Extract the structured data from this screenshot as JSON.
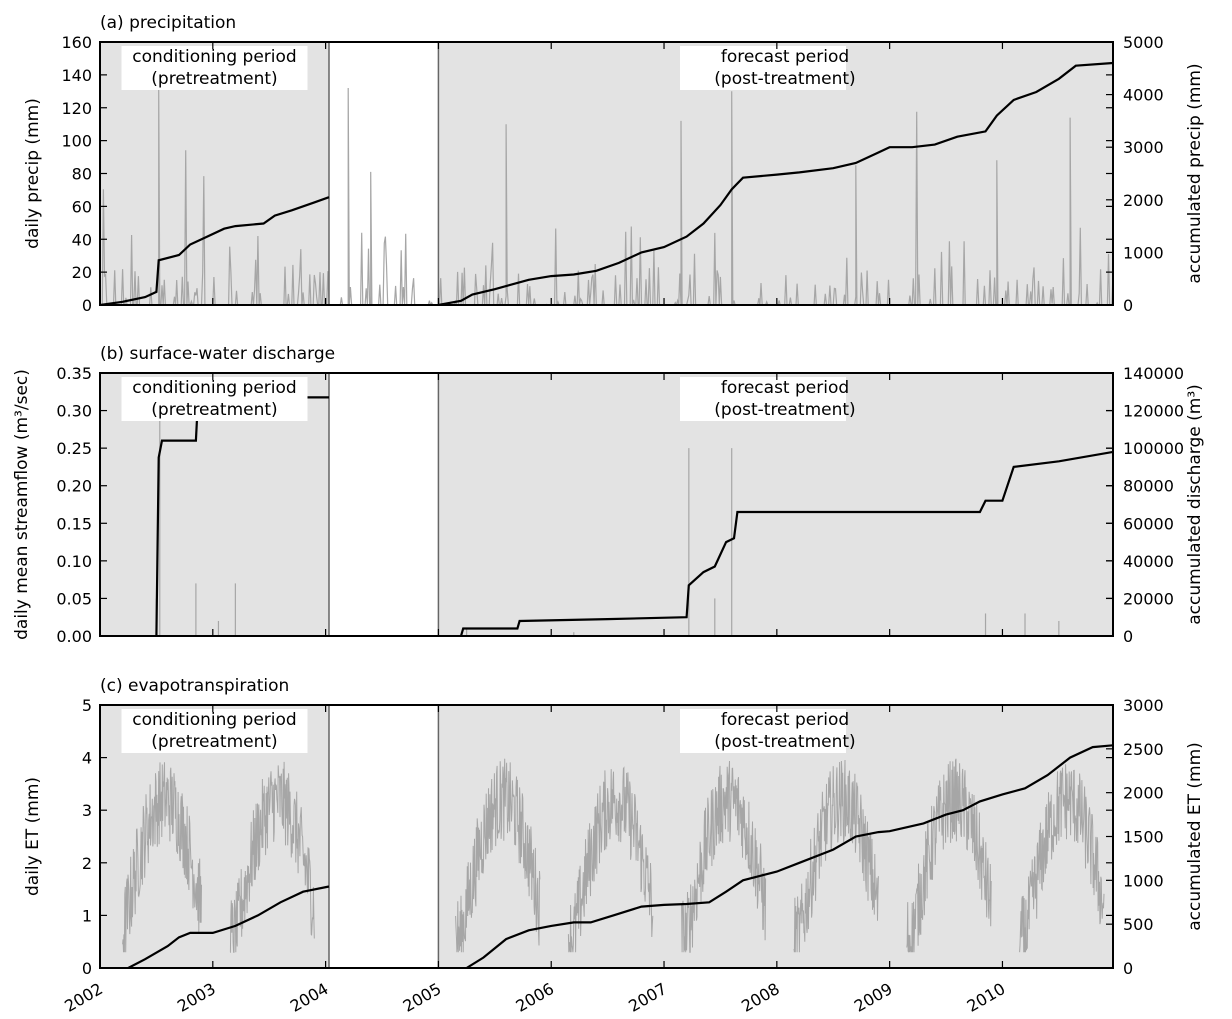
{
  "chart_data": [
    {
      "type": "line",
      "title": "(a) precipitation",
      "ylabel": "daily precip (mm)",
      "y2label": "accumulated precip (mm)",
      "ylim": [
        0,
        160
      ],
      "y2lim": [
        0,
        5000
      ],
      "yticks": [
        0,
        20,
        40,
        60,
        80,
        100,
        120,
        140,
        160
      ],
      "y2ticks": [
        0,
        1000,
        2000,
        3000,
        4000,
        5000
      ],
      "periods": [
        {
          "label": "conditioning period",
          "sublabel": "(pretreatment)",
          "start": 2002.0,
          "end": 2004.03
        },
        {
          "label": "forecast period",
          "sublabel": "(post-treatment)",
          "start": 2005.0,
          "end": 2010.98
        }
      ],
      "accumulated": {
        "segments": [
          [
            [
              2002.0,
              0
            ],
            [
              2002.2,
              60
            ],
            [
              2002.4,
              150
            ],
            [
              2002.5,
              250
            ],
            [
              2002.52,
              850
            ],
            [
              2002.7,
              950
            ],
            [
              2002.8,
              1150
            ],
            [
              2002.95,
              1300
            ],
            [
              2003.1,
              1450
            ],
            [
              2003.2,
              1500
            ],
            [
              2003.45,
              1550
            ],
            [
              2003.55,
              1700
            ],
            [
              2003.7,
              1800
            ],
            [
              2003.9,
              1950
            ],
            [
              2004.03,
              2050
            ]
          ],
          [
            [
              2005.0,
              0
            ],
            [
              2005.2,
              80
            ],
            [
              2005.3,
              200
            ],
            [
              2005.5,
              300
            ],
            [
              2005.8,
              480
            ],
            [
              2006.0,
              550
            ],
            [
              2006.2,
              580
            ],
            [
              2006.4,
              650
            ],
            [
              2006.6,
              800
            ],
            [
              2006.8,
              1000
            ],
            [
              2007.0,
              1100
            ],
            [
              2007.2,
              1300
            ],
            [
              2007.35,
              1550
            ],
            [
              2007.5,
              1900
            ],
            [
              2007.6,
              2200
            ],
            [
              2007.7,
              2420
            ],
            [
              2008.0,
              2480
            ],
            [
              2008.2,
              2520
            ],
            [
              2008.5,
              2600
            ],
            [
              2008.7,
              2700
            ],
            [
              2008.9,
              2900
            ],
            [
              2009.0,
              3000
            ],
            [
              2009.2,
              3000
            ],
            [
              2009.4,
              3050
            ],
            [
              2009.6,
              3200
            ],
            [
              2009.85,
              3300
            ],
            [
              2009.95,
              3600
            ],
            [
              2010.1,
              3900
            ],
            [
              2010.3,
              4050
            ],
            [
              2010.5,
              4300
            ],
            [
              2010.65,
              4550
            ],
            [
              2010.98,
              4600
            ]
          ]
        ]
      },
      "daily_style": "gray spikes"
    },
    {
      "type": "line",
      "title": "(b) surface-water discharge",
      "ylabel": "daily mean streamflow (m³/sec)",
      "y2label": "accumulated discharge (m³)",
      "ylim": [
        0,
        0.35
      ],
      "y2lim": [
        0,
        140000
      ],
      "yticks": [
        0.0,
        0.05,
        0.1,
        0.15,
        0.2,
        0.25,
        0.3,
        0.35
      ],
      "y2ticks": [
        0,
        20000,
        40000,
        60000,
        80000,
        100000,
        120000,
        140000
      ],
      "periods": [
        {
          "label": "conditioning period",
          "sublabel": "(pretreatment)",
          "start": 2002.0,
          "end": 2004.03
        },
        {
          "label": "forecast period",
          "sublabel": "(post-treatment)",
          "start": 2005.0,
          "end": 2010.98
        }
      ],
      "accumulated": {
        "segments": [
          [
            [
              2002.5,
              0
            ],
            [
              2002.52,
              95000
            ],
            [
              2002.55,
              104000
            ],
            [
              2002.85,
              104000
            ],
            [
              2002.87,
              127000
            ],
            [
              2004.03,
              127000
            ]
          ],
          [
            [
              2005.2,
              0
            ],
            [
              2005.22,
              4000
            ],
            [
              2005.7,
              4000
            ],
            [
              2005.72,
              8000
            ],
            [
              2006.5,
              9000
            ],
            [
              2007.2,
              10000
            ],
            [
              2007.22,
              27000
            ],
            [
              2007.35,
              34000
            ],
            [
              2007.45,
              37000
            ],
            [
              2007.55,
              50000
            ],
            [
              2007.62,
              52000
            ],
            [
              2007.65,
              66000
            ],
            [
              2009.8,
              66000
            ],
            [
              2009.85,
              72000
            ],
            [
              2010.0,
              72000
            ],
            [
              2010.1,
              90000
            ],
            [
              2010.5,
              93000
            ],
            [
              2010.98,
              98000
            ]
          ]
        ]
      },
      "daily_style": "gray spikes"
    },
    {
      "type": "line",
      "title": "(c) evapotranspiration",
      "ylabel": "daily ET (mm)",
      "y2label": "accumulated ET (mm)",
      "ylim": [
        0,
        5
      ],
      "y2lim": [
        0,
        3000
      ],
      "yticks": [
        0,
        1,
        2,
        3,
        4,
        5
      ],
      "y2ticks": [
        0,
        500,
        1000,
        1500,
        2000,
        2500,
        3000
      ],
      "periods": [
        {
          "label": "conditioning period",
          "sublabel": "(pretreatment)",
          "start": 2002.0,
          "end": 2004.03
        },
        {
          "label": "forecast period",
          "sublabel": "(post-treatment)",
          "start": 2005.0,
          "end": 2010.98
        }
      ],
      "accumulated": {
        "segments": [
          [
            [
              2002.25,
              0
            ],
            [
              2002.4,
              100
            ],
            [
              2002.6,
              250
            ],
            [
              2002.7,
              350
            ],
            [
              2002.8,
              400
            ],
            [
              2003.0,
              400
            ],
            [
              2003.2,
              480
            ],
            [
              2003.4,
              600
            ],
            [
              2003.6,
              750
            ],
            [
              2003.8,
              870
            ],
            [
              2004.03,
              930
            ]
          ],
          [
            [
              2005.25,
              0
            ],
            [
              2005.4,
              120
            ],
            [
              2005.6,
              330
            ],
            [
              2005.8,
              430
            ],
            [
              2006.0,
              480
            ],
            [
              2006.2,
              520
            ],
            [
              2006.35,
              520
            ],
            [
              2006.55,
              600
            ],
            [
              2006.8,
              700
            ],
            [
              2007.0,
              720
            ],
            [
              2007.2,
              730
            ],
            [
              2007.4,
              750
            ],
            [
              2007.55,
              870
            ],
            [
              2007.7,
              1000
            ],
            [
              2008.0,
              1100
            ],
            [
              2008.2,
              1200
            ],
            [
              2008.5,
              1350
            ],
            [
              2008.7,
              1500
            ],
            [
              2008.9,
              1550
            ],
            [
              2009.0,
              1560
            ],
            [
              2009.3,
              1650
            ],
            [
              2009.5,
              1750
            ],
            [
              2009.65,
              1800
            ],
            [
              2009.8,
              1900
            ],
            [
              2010.0,
              1980
            ],
            [
              2010.2,
              2050
            ],
            [
              2010.4,
              2200
            ],
            [
              2010.6,
              2400
            ],
            [
              2010.8,
              2520
            ],
            [
              2010.98,
              2540
            ]
          ]
        ]
      },
      "daily_style": "gray seasonal noise"
    }
  ],
  "x_axis": {
    "ticks": [
      "2002",
      "2003",
      "2004",
      "2005",
      "2006",
      "2007",
      "2008",
      "2009",
      "2010"
    ],
    "tick_values": [
      2002.0,
      2003.0,
      2004.0,
      2005.0,
      2006.0,
      2007.0,
      2008.0,
      2009.0,
      2010.0
    ],
    "xlim": [
      2002.0,
      2010.98
    ]
  }
}
